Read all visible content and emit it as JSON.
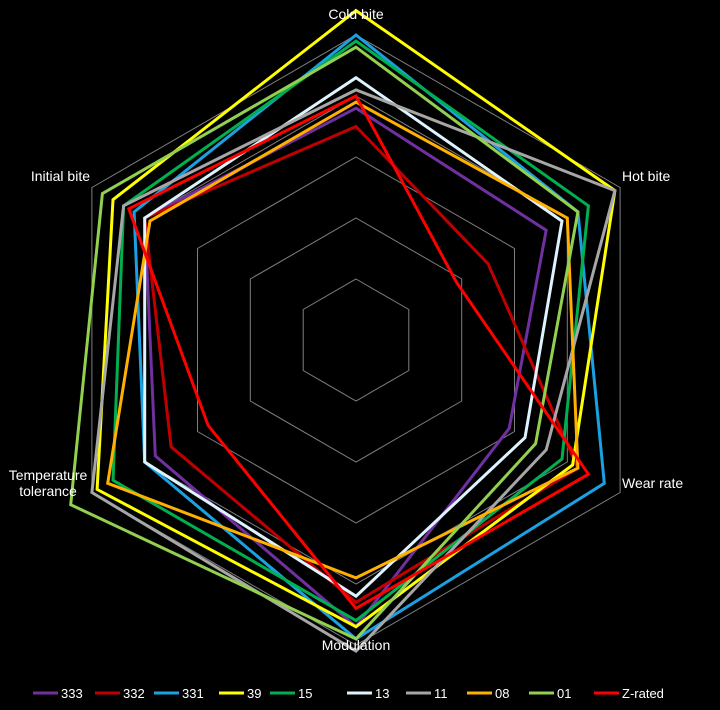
{
  "chart_data": {
    "type": "radar",
    "title": "",
    "axes": [
      "Cold bite",
      "Hot bite",
      "Wear rate",
      "Modulation",
      "Temperature\ntolerance",
      "Initial bite"
    ],
    "rmax": 5,
    "rings": 5,
    "grid": true,
    "legend_position": "bottom",
    "series": [
      {
        "name": "333",
        "color": "#7030a0",
        "values": [
          3.8,
          3.6,
          2.9,
          4.7,
          3.8,
          4.0
        ]
      },
      {
        "name": "332",
        "color": "#c00000",
        "values": [
          3.5,
          2.5,
          4.2,
          4.3,
          3.5,
          4.0
        ]
      },
      {
        "name": "331",
        "color": "#1ba1e2",
        "values": [
          5.0,
          4.2,
          4.7,
          4.9,
          4.0,
          4.2
        ]
      },
      {
        "name": "39",
        "color": "#ffff00",
        "values": [
          5.4,
          4.9,
          4.1,
          4.7,
          4.9,
          4.6
        ]
      },
      {
        "name": "15",
        "color": "#00b050",
        "values": [
          4.9,
          4.4,
          3.9,
          4.6,
          4.6,
          4.4
        ]
      },
      {
        "name": "13",
        "color": "#ddf3ff",
        "values": [
          4.3,
          3.9,
          3.2,
          4.2,
          4.0,
          4.0
        ]
      },
      {
        "name": "11",
        "color": "#a6a6a6",
        "values": [
          4.1,
          4.9,
          3.6,
          5.1,
          5.0,
          4.4
        ]
      },
      {
        "name": "08",
        "color": "#ffb000",
        "values": [
          3.9,
          4.0,
          4.2,
          3.9,
          4.7,
          3.9
        ]
      },
      {
        "name": "01",
        "color": "#92d050",
        "values": [
          4.8,
          4.2,
          3.4,
          4.9,
          5.4,
          4.8
        ]
      },
      {
        "name": "Z-rated",
        "color": "#ff0000",
        "values": [
          4.0,
          1.9,
          4.4,
          4.4,
          2.8,
          4.3
        ]
      }
    ]
  }
}
